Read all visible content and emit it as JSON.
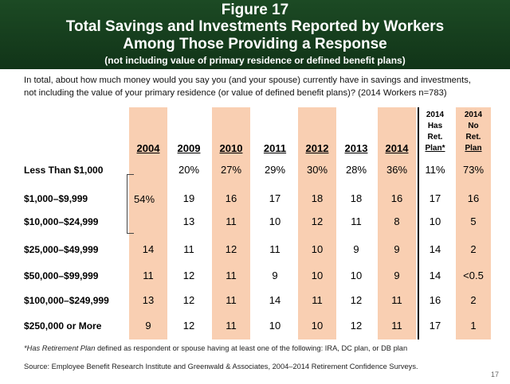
{
  "header": {
    "figure_label": "Figure 17",
    "title_line1": "Total Savings and Investments Reported by Workers",
    "title_line2": "Among Those Providing a Response",
    "subtitle": "(not including value of primary residence or defined benefit plans)"
  },
  "question": {
    "line1": "In total, about how much money would you say you (and your spouse) currently have in savings and investments,",
    "line2": "not including the value of your primary residence (or value of defined benefit plans)? (2014 Workers n=783)"
  },
  "chart_data": {
    "type": "table",
    "columns": [
      {
        "label": "2004",
        "shaded": true
      },
      {
        "label": "2009",
        "shaded": false
      },
      {
        "label": "2010",
        "shaded": true
      },
      {
        "label": "2011",
        "shaded": false
      },
      {
        "label": "2012",
        "shaded": true
      },
      {
        "label": "2013",
        "shaded": false
      },
      {
        "label": "2014",
        "shaded": true
      }
    ],
    "retirement_columns": [
      {
        "lines": [
          "2014",
          "Has",
          "Ret.",
          "Plan*"
        ],
        "shaded": false
      },
      {
        "lines": [
          "2014",
          "No",
          "Ret.",
          "Plan"
        ],
        "shaded": true
      }
    ],
    "rows": [
      {
        "label": "Less Than $1,000",
        "values": [
          "",
          "20%",
          "27%",
          "29%",
          "30%",
          "28%",
          "36%",
          "11%",
          "73%"
        ]
      },
      {
        "label": "$1,000–$9,999",
        "values": [
          "",
          "19",
          "16",
          "17",
          "18",
          "18",
          "16",
          "17",
          "16"
        ]
      },
      {
        "label": "$10,000–$24,999",
        "values": [
          "",
          "13",
          "11",
          "10",
          "12",
          "11",
          "8",
          "10",
          "5"
        ]
      },
      {
        "label": "$25,000–$49,999",
        "values": [
          "14",
          "11",
          "12",
          "11",
          "10",
          "9",
          "9",
          "14",
          "2"
        ]
      },
      {
        "label": "$50,000–$99,999",
        "values": [
          "11",
          "12",
          "11",
          "9",
          "10",
          "10",
          "9",
          "14",
          "<0.5"
        ]
      },
      {
        "label": "$100,000–$249,999",
        "values": [
          "13",
          "12",
          "11",
          "14",
          "11",
          "12",
          "11",
          "16",
          "2"
        ]
      },
      {
        "label": "$250,000 or More",
        "values": [
          "9",
          "12",
          "11",
          "10",
          "10",
          "12",
          "11",
          "17",
          "1"
        ]
      }
    ],
    "combined_2004": {
      "value": "54%",
      "rows_spanned": [
        "Less Than $1,000",
        "$1,000–$9,999",
        "$10,000–$24,999"
      ]
    }
  },
  "footnote": {
    "term": "*Has Retirement Plan",
    "text": " defined as respondent or spouse having at least one of the following: IRA, DC plan, or DB plan"
  },
  "source": "Source:  Employee Benefit Research Institute and Greenwald & Associates, 2004–2014 Retirement Confidence Surveys.",
  "page_number": "17",
  "colors": {
    "banner": "#1c4a24",
    "shade": "#f9cfb2"
  }
}
